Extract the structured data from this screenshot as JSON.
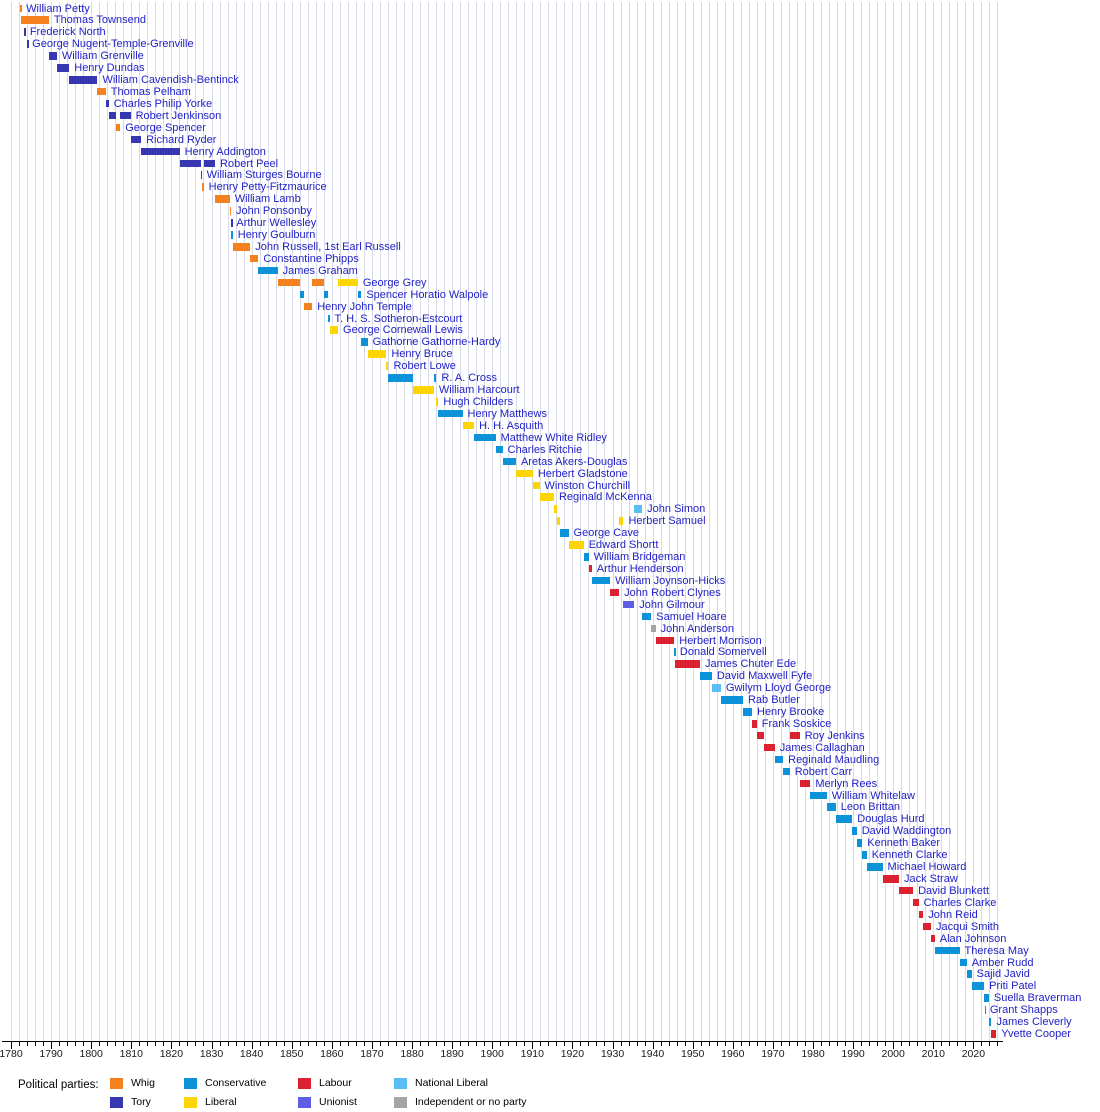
{
  "colors": {
    "name_link": "#2222c8",
    "gridline": "#d7dae9",
    "axis": "#000000"
  },
  "legend": {
    "title": "Political parties:",
    "columns": [
      [
        "whig",
        "tory"
      ],
      [
        "conservative",
        "liberal"
      ],
      [
        "labour",
        "unionist"
      ],
      [
        "natliberal",
        "independent"
      ]
    ]
  },
  "chart_data": {
    "type": "timeline",
    "x_axis": {
      "start": 1780,
      "end": 2026,
      "gridline_step": 2,
      "tick_step": 2,
      "decade_labels": [
        "1780",
        "1790",
        "1800",
        "1810",
        "1820",
        "1830",
        "1840",
        "1850",
        "1860",
        "1870",
        "1880",
        "1890",
        "1900",
        "1910",
        "1920",
        "1930",
        "1940",
        "1950",
        "1960",
        "1970",
        "1980",
        "1990",
        "2000",
        "2010",
        "2020"
      ]
    },
    "parties": {
      "whig": {
        "label": "Whig",
        "color": "#F5821F"
      },
      "tory": {
        "label": "Tory",
        "color": "#3737B2"
      },
      "conservative": {
        "label": "Conservative",
        "color": "#0B92D8"
      },
      "liberal": {
        "label": "Liberal",
        "color": "#FDD505"
      },
      "labour": {
        "label": "Labour",
        "color": "#DC2130"
      },
      "unionist": {
        "label": "Unionist",
        "color": "#5E5EE4"
      },
      "natliberal": {
        "label": "National Liberal",
        "color": "#58BDF2"
      },
      "independent": {
        "label": "Independent or no party",
        "color": "#A4A4A4"
      }
    },
    "people": [
      {
        "name": "William Petty",
        "terms": [
          [
            1782.21,
            1782.54,
            "whig"
          ]
        ]
      },
      {
        "name": "Thomas Townsend",
        "terms": [
          [
            1782.54,
            1789.44,
            "whig"
          ]
        ]
      },
      {
        "name": "Frederick North",
        "terms": [
          [
            1783.27,
            1783.45,
            "tory"
          ]
        ]
      },
      {
        "name": "George Nugent-Temple-Grenville",
        "terms": [
          [
            1783.95,
            1784.03,
            "tory"
          ]
        ]
      },
      {
        "name": "William Grenville",
        "terms": [
          [
            1789.44,
            1791.44,
            "tory"
          ]
        ]
      },
      {
        "name": "Henry Dundas",
        "terms": [
          [
            1791.44,
            1794.53,
            "tory"
          ]
        ]
      },
      {
        "name": "William Cavendish-Bentinck",
        "terms": [
          [
            1794.53,
            1801.57,
            "tory"
          ]
        ]
      },
      {
        "name": "Thomas Pelham",
        "terms": [
          [
            1801.57,
            1803.63,
            "whig"
          ]
        ]
      },
      {
        "name": "Charles Philip Yorke",
        "terms": [
          [
            1803.63,
            1804.37,
            "tory"
          ]
        ]
      },
      {
        "name": "Robert Jenkinson",
        "terms": [
          [
            1804.37,
            1806.09,
            "tory"
          ],
          [
            1807.24,
            1809.83,
            "tory"
          ]
        ]
      },
      {
        "name": "George Spencer",
        "terms": [
          [
            1806.09,
            1807.24,
            "whig"
          ]
        ]
      },
      {
        "name": "Richard Ryder",
        "terms": [
          [
            1809.83,
            1812.44,
            "tory"
          ]
        ]
      },
      {
        "name": "Henry Addington",
        "terms": [
          [
            1812.44,
            1822.04,
            "tory"
          ]
        ]
      },
      {
        "name": "Robert Peel",
        "terms": [
          [
            1822.04,
            1827.3,
            "tory"
          ],
          [
            1828.05,
            1830.88,
            "tory"
          ]
        ]
      },
      {
        "name": "William Sturges Bourne",
        "terms": [
          [
            1827.3,
            1827.54,
            "tory"
          ]
        ]
      },
      {
        "name": "Henry Petty-Fitzmaurice",
        "terms": [
          [
            1827.54,
            1828.05,
            "whig"
          ]
        ]
      },
      {
        "name": "William Lamb",
        "terms": [
          [
            1830.88,
            1834.54,
            "whig"
          ]
        ]
      },
      {
        "name": "John Ponsonby",
        "terms": [
          [
            1834.54,
            1834.87,
            "whig"
          ]
        ]
      },
      {
        "name": "Arthur Wellesley",
        "terms": [
          [
            1834.87,
            1834.96,
            "tory"
          ]
        ]
      },
      {
        "name": "Henry Goulburn",
        "terms": [
          [
            1834.96,
            1835.3,
            "conservative"
          ]
        ]
      },
      {
        "name": "John Russell, 1st Earl Russell",
        "terms": [
          [
            1835.3,
            1839.67,
            "whig"
          ]
        ]
      },
      {
        "name": "Constantine Phipps",
        "terms": [
          [
            1839.67,
            1841.68,
            "whig"
          ]
        ]
      },
      {
        "name": "James Graham",
        "terms": [
          [
            1841.68,
            1846.5,
            "conservative"
          ]
        ]
      },
      {
        "name": "George Grey",
        "terms": [
          [
            1846.5,
            1852.15,
            "whig"
          ],
          [
            1855.12,
            1858.16,
            "whig"
          ],
          [
            1861.56,
            1866.5,
            "liberal"
          ]
        ]
      },
      {
        "name": "Spencer Horatio Walpole",
        "terms": [
          [
            1852.15,
            1852.97,
            "conservative"
          ],
          [
            1858.16,
            1859.17,
            "conservative"
          ],
          [
            1866.5,
            1867.37,
            "conservative"
          ]
        ]
      },
      {
        "name": "Henry John Temple",
        "terms": [
          [
            1852.97,
            1855.12,
            "whig"
          ]
        ]
      },
      {
        "name": "T. H. S. Sotheron-Estcourt",
        "terms": [
          [
            1859.17,
            1859.44,
            "conservative"
          ]
        ]
      },
      {
        "name": "George Cornewall Lewis",
        "terms": [
          [
            1859.44,
            1861.56,
            "liberal"
          ]
        ]
      },
      {
        "name": "Gathorne Gathorne-Hardy",
        "terms": [
          [
            1867.37,
            1868.92,
            "conservative"
          ]
        ]
      },
      {
        "name": "Henry Bruce",
        "terms": [
          [
            1868.92,
            1873.6,
            "liberal"
          ]
        ]
      },
      {
        "name": "Robert Lowe",
        "terms": [
          [
            1873.6,
            1874.13,
            "liberal"
          ]
        ]
      },
      {
        "name": "R. A. Cross",
        "terms": [
          [
            1874.13,
            1880.3,
            "conservative"
          ],
          [
            1885.46,
            1886.09,
            "conservative"
          ]
        ]
      },
      {
        "name": "William Harcourt",
        "terms": [
          [
            1880.3,
            1885.46,
            "liberal"
          ]
        ]
      },
      {
        "name": "Hugh Childers",
        "terms": [
          [
            1886.09,
            1886.58,
            "liberal"
          ]
        ]
      },
      {
        "name": "Henry Matthews",
        "terms": [
          [
            1886.58,
            1892.6,
            "conservative"
          ]
        ]
      },
      {
        "name": "H. H. Asquith",
        "terms": [
          [
            1892.6,
            1895.48,
            "liberal"
          ]
        ]
      },
      {
        "name": "Matthew White Ridley",
        "terms": [
          [
            1895.48,
            1900.84,
            "conservative"
          ]
        ]
      },
      {
        "name": "Charles Ritchie",
        "terms": [
          [
            1900.84,
            1902.6,
            "conservative"
          ]
        ]
      },
      {
        "name": "Aretas Akers-Douglas",
        "terms": [
          [
            1902.6,
            1905.92,
            "conservative"
          ]
        ]
      },
      {
        "name": "Herbert Gladstone",
        "terms": [
          [
            1905.92,
            1910.13,
            "liberal"
          ]
        ]
      },
      {
        "name": "Winston Churchill",
        "terms": [
          [
            1910.13,
            1911.8,
            "liberal"
          ]
        ]
      },
      {
        "name": "Reginald McKenna",
        "terms": [
          [
            1911.8,
            1915.4,
            "liberal"
          ]
        ]
      },
      {
        "name": "John Simon",
        "terms": [
          [
            1915.4,
            1916.04,
            "liberal"
          ],
          [
            1935.43,
            1937.4,
            "natliberal"
          ]
        ]
      },
      {
        "name": "Herbert Samuel",
        "terms": [
          [
            1916.04,
            1916.92,
            "liberal"
          ],
          [
            1931.66,
            1932.74,
            "liberal"
          ]
        ]
      },
      {
        "name": "George Cave",
        "terms": [
          [
            1916.92,
            1919.04,
            "conservative"
          ]
        ]
      },
      {
        "name": "Edward Shortt",
        "terms": [
          [
            1919.04,
            1922.82,
            "liberal"
          ]
        ]
      },
      {
        "name": "William Bridgeman",
        "terms": [
          [
            1922.82,
            1924.06,
            "conservative"
          ]
        ]
      },
      {
        "name": "Arthur Henderson",
        "terms": [
          [
            1924.06,
            1924.84,
            "labour"
          ]
        ]
      },
      {
        "name": "William Joynson-Hicks",
        "terms": [
          [
            1924.84,
            1929.42,
            "conservative"
          ]
        ]
      },
      {
        "name": "John Robert Clynes",
        "terms": [
          [
            1929.42,
            1931.66,
            "labour"
          ]
        ]
      },
      {
        "name": "John Gilmour",
        "terms": [
          [
            1932.74,
            1935.43,
            "unionist"
          ]
        ]
      },
      {
        "name": "Samuel Hoare",
        "terms": [
          [
            1937.4,
            1939.67,
            "conservative"
          ]
        ]
      },
      {
        "name": "John Anderson",
        "terms": [
          [
            1939.67,
            1940.76,
            "independent"
          ]
        ]
      },
      {
        "name": "Herbert Morrison",
        "terms": [
          [
            1940.76,
            1945.4,
            "labour"
          ]
        ]
      },
      {
        "name": "Donald Somervell",
        "terms": [
          [
            1945.4,
            1945.57,
            "conservative"
          ]
        ]
      },
      {
        "name": "James Chuter Ede",
        "terms": [
          [
            1945.57,
            1951.82,
            "labour"
          ]
        ]
      },
      {
        "name": "David Maxwell Fyfe",
        "terms": [
          [
            1951.82,
            1954.79,
            "conservative"
          ]
        ]
      },
      {
        "name": "Gwilym Lloyd George",
        "terms": [
          [
            1954.79,
            1957.04,
            "natliberal"
          ]
        ]
      },
      {
        "name": "Rab Butler",
        "terms": [
          [
            1957.04,
            1962.54,
            "conservative"
          ]
        ]
      },
      {
        "name": "Henry Brooke",
        "terms": [
          [
            1962.54,
            1964.79,
            "conservative"
          ]
        ]
      },
      {
        "name": "Frank Soskice",
        "terms": [
          [
            1964.79,
            1965.97,
            "labour"
          ]
        ]
      },
      {
        "name": "Roy Jenkins",
        "terms": [
          [
            1965.97,
            1967.9,
            "labour"
          ],
          [
            1974.19,
            1976.7,
            "labour"
          ]
        ]
      },
      {
        "name": "James Callaghan",
        "terms": [
          [
            1967.9,
            1970.46,
            "labour"
          ]
        ]
      },
      {
        "name": "Reginald Maudling",
        "terms": [
          [
            1970.46,
            1972.55,
            "conservative"
          ]
        ]
      },
      {
        "name": "Robert Carr",
        "terms": [
          [
            1972.55,
            1974.19,
            "conservative"
          ]
        ]
      },
      {
        "name": "Merlyn Rees",
        "terms": [
          [
            1976.7,
            1979.34,
            "labour"
          ]
        ]
      },
      {
        "name": "William Whitelaw",
        "terms": [
          [
            1979.34,
            1983.44,
            "conservative"
          ]
        ]
      },
      {
        "name": "Leon Brittan",
        "terms": [
          [
            1983.44,
            1985.67,
            "conservative"
          ]
        ]
      },
      {
        "name": "Douglas Hurd",
        "terms": [
          [
            1985.67,
            1989.8,
            "conservative"
          ]
        ]
      },
      {
        "name": "David Waddington",
        "terms": [
          [
            1989.8,
            1990.9,
            "conservative"
          ]
        ]
      },
      {
        "name": "Kenneth Baker",
        "terms": [
          [
            1990.9,
            1992.28,
            "conservative"
          ]
        ]
      },
      {
        "name": "Kenneth Clarke",
        "terms": [
          [
            1992.28,
            1993.4,
            "conservative"
          ]
        ]
      },
      {
        "name": "Michael Howard",
        "terms": [
          [
            1993.4,
            1997.34,
            "conservative"
          ]
        ]
      },
      {
        "name": "Jack Straw",
        "terms": [
          [
            1997.34,
            2001.44,
            "labour"
          ]
        ]
      },
      {
        "name": "David Blunkett",
        "terms": [
          [
            2001.44,
            2004.96,
            "labour"
          ]
        ]
      },
      {
        "name": "Charles Clarke",
        "terms": [
          [
            2004.96,
            2006.35,
            "labour"
          ]
        ]
      },
      {
        "name": "John Reid",
        "terms": [
          [
            2006.35,
            2007.49,
            "labour"
          ]
        ]
      },
      {
        "name": "Jacqui Smith",
        "terms": [
          [
            2007.49,
            2009.43,
            "labour"
          ]
        ]
      },
      {
        "name": "Alan Johnson",
        "terms": [
          [
            2009.43,
            2010.36,
            "labour"
          ]
        ]
      },
      {
        "name": "Theresa May",
        "terms": [
          [
            2010.36,
            2016.54,
            "conservative"
          ]
        ]
      },
      {
        "name": "Amber Rudd",
        "terms": [
          [
            2016.54,
            2018.33,
            "conservative"
          ]
        ]
      },
      {
        "name": "Sajid Javid",
        "terms": [
          [
            2018.33,
            2019.56,
            "conservative"
          ]
        ]
      },
      {
        "name": "Priti Patel",
        "terms": [
          [
            2019.56,
            2022.68,
            "conservative"
          ]
        ]
      },
      {
        "name": "Suella Braverman",
        "terms": [
          [
            2022.68,
            2023.87,
            "conservative"
          ]
        ]
      },
      {
        "name": "Grant Shapps",
        "terms": [
          [
            2022.8,
            2022.86,
            "conservative"
          ]
        ]
      },
      {
        "name": "James Cleverly",
        "terms": [
          [
            2023.87,
            2024.51,
            "conservative"
          ]
        ]
      },
      {
        "name": "Yvette Cooper",
        "terms": [
          [
            2024.51,
            2025.7,
            "labour"
          ]
        ]
      }
    ]
  }
}
